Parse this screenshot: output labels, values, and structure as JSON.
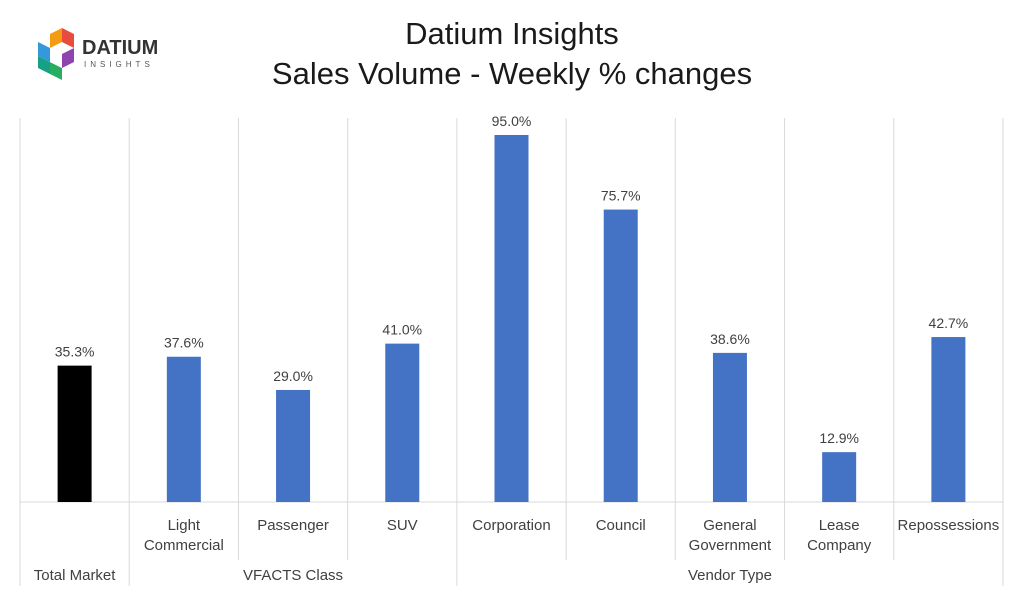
{
  "logo": {
    "name": "DATIUM",
    "tagline": "INSIGHTS",
    "colors": [
      "#f39c12",
      "#e74c3c",
      "#8e44ad",
      "#3498db",
      "#27ae60"
    ]
  },
  "chart_data": {
    "type": "bar",
    "title": "Datium Insights",
    "subtitle": "Sales Volume - Weekly % changes",
    "categories": [
      "",
      "Light Commercial",
      "Passenger",
      "SUV",
      "Corporation",
      "Council",
      "General Government",
      "Lease Company",
      "Repossessions"
    ],
    "category_lines": [
      [],
      [
        "Light",
        "Commercial"
      ],
      [
        "Passenger"
      ],
      [
        "SUV"
      ],
      [
        "Corporation"
      ],
      [
        "Council"
      ],
      [
        "General",
        "Government"
      ],
      [
        "Lease",
        "Company"
      ],
      [
        "Repossessions"
      ]
    ],
    "values": [
      35.3,
      37.6,
      29.0,
      41.0,
      95.0,
      75.7,
      38.6,
      12.9,
      42.7
    ],
    "data_labels": [
      "35.3%",
      "37.6%",
      "29.0%",
      "41.0%",
      "95.0%",
      "75.7%",
      "38.6%",
      "12.9%",
      "42.7%"
    ],
    "groups": [
      {
        "label": "Total Market",
        "start": 0,
        "end": 0
      },
      {
        "label": "VFACTS Class",
        "start": 1,
        "end": 3
      },
      {
        "label": "Vendor Type",
        "start": 4,
        "end": 8
      }
    ],
    "ylim": [
      0,
      95
    ],
    "grid": "vertical separators",
    "colors": {
      "highlight": "#000000",
      "bar": "#4472c4",
      "gridline": "#d9d9d9",
      "text": "#404040"
    }
  }
}
